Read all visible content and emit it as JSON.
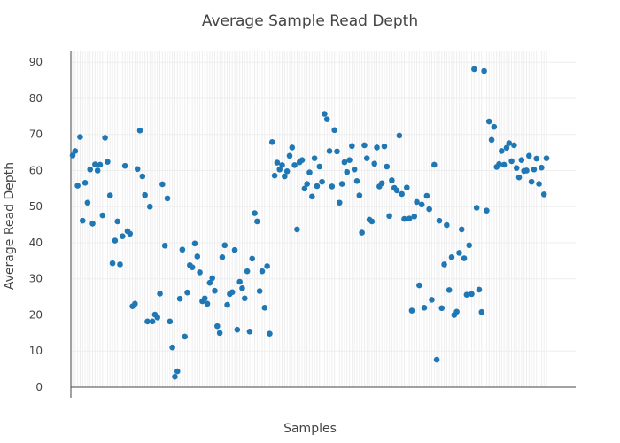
{
  "chart_data": {
    "type": "scatter",
    "title": "Average Sample Read Depth",
    "xlabel": "Samples",
    "ylabel": "Average Read Depth",
    "ylim": [
      0,
      93
    ],
    "yticks": [
      0,
      10,
      20,
      30,
      40,
      50,
      60,
      70,
      80,
      90
    ],
    "xticks_labeled": false,
    "grid": true,
    "series": [
      {
        "color": "#1f77b4",
        "values": [
          64.2,
          65.4,
          55.8,
          69.3,
          46.1,
          56.6,
          51.1,
          60.3,
          45.3,
          61.7,
          60.0,
          61.6,
          47.6,
          69.1,
          62.4,
          53.1,
          34.3,
          40.6,
          45.9,
          34.0,
          41.8,
          61.3,
          43.2,
          42.5,
          22.4,
          23.1,
          60.4,
          71.1,
          58.4,
          53.2,
          18.2,
          50.0,
          18.2,
          20.1,
          19.3,
          25.9,
          56.2,
          39.2,
          52.3,
          18.2,
          11.0,
          2.9,
          4.4,
          24.5,
          38.1,
          14.0,
          26.2,
          33.8,
          33.2,
          39.8,
          36.2,
          31.8,
          23.8,
          24.6,
          23.1,
          28.9,
          30.2,
          26.7,
          16.9,
          15.0,
          36.0,
          39.3,
          22.8,
          25.8,
          26.3,
          38.0,
          15.9,
          29.2,
          27.4,
          24.6,
          32.1,
          15.4,
          35.6,
          48.2,
          45.9,
          26.6,
          32.1,
          22.0,
          33.5,
          14.8,
          67.9,
          58.6,
          62.2,
          60.3,
          61.5,
          58.4,
          59.8,
          64.1,
          66.4,
          61.5,
          43.7,
          62.3,
          62.9,
          55.0,
          56.3,
          59.5,
          52.8,
          63.4,
          55.7,
          61.1,
          56.9,
          75.7,
          74.2,
          65.4,
          55.6,
          71.2,
          65.3,
          51.1,
          56.3,
          62.3,
          59.6,
          62.9,
          66.8,
          60.3,
          57.1,
          53.1,
          42.8,
          67.0,
          63.4,
          46.4,
          45.9,
          61.9,
          66.4,
          55.6,
          56.5,
          66.7,
          61.1,
          47.4,
          57.3,
          55.2,
          54.5,
          69.7,
          53.5,
          46.6,
          55.3,
          46.7,
          21.2,
          47.3,
          51.3,
          28.2,
          50.6,
          22.0,
          53.0,
          49.3,
          24.2,
          61.6,
          7.6,
          46.1,
          21.9,
          34.0,
          44.9,
          26.9,
          36.0,
          20.0,
          20.9,
          37.2,
          43.7,
          35.7,
          25.6,
          39.3,
          25.8,
          88.1,
          49.7,
          27.0,
          20.8,
          87.6,
          48.9,
          73.6,
          68.5,
          72.1,
          61.0,
          61.8,
          65.4,
          61.6,
          66.3,
          67.6,
          62.6,
          67.0,
          60.7,
          58.1,
          62.9,
          59.9,
          60.0,
          64.1,
          56.9,
          60.3,
          63.3,
          56.3,
          60.8,
          53.4,
          63.4
        ]
      }
    ]
  }
}
